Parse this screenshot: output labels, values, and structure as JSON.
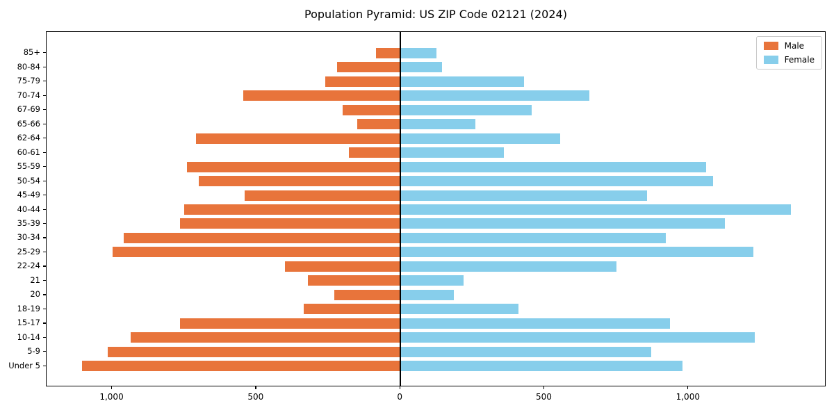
{
  "chart_data": {
    "type": "bar",
    "orientation": "horizontal",
    "subtype": "population-pyramid",
    "title": "Population Pyramid: US ZIP Code 02121 (2024)",
    "categories_top_to_bottom": true,
    "categories": [
      "85+",
      "80-84",
      "75-79",
      "70-74",
      "67-69",
      "65-66",
      "62-64",
      "60-61",
      "55-59",
      "50-54",
      "45-49",
      "40-44",
      "35-39",
      "30-34",
      "25-29",
      "22-24",
      "21",
      "20",
      "18-19",
      "15-17",
      "10-14",
      "5-9",
      "Under 5"
    ],
    "series": [
      {
        "name": "Male",
        "side": "left",
        "color": "#e8743b",
        "values": [
          85,
          220,
          260,
          545,
          200,
          150,
          710,
          180,
          740,
          700,
          540,
          750,
          765,
          960,
          1000,
          400,
          320,
          230,
          335,
          765,
          935,
          1015,
          1105
        ]
      },
      {
        "name": "Female",
        "side": "right",
        "color": "#87ceeb",
        "values": [
          125,
          145,
          430,
          655,
          455,
          260,
          555,
          360,
          1060,
          1085,
          855,
          1355,
          1125,
          920,
          1225,
          750,
          220,
          185,
          410,
          935,
          1230,
          870,
          980
        ]
      }
    ],
    "xlim": [
      -1228,
      1478
    ],
    "xticks": [
      -1000,
      -500,
      0,
      500,
      1000
    ],
    "xtick_labels": [
      "1,000",
      "500",
      "0",
      "500",
      "1,000"
    ],
    "xlabel": "",
    "ylabel": "",
    "grid": false,
    "legend_position": "upper right",
    "zero_line": true,
    "frame": true,
    "background_color": "#ffffff",
    "text_color": "#000000"
  }
}
